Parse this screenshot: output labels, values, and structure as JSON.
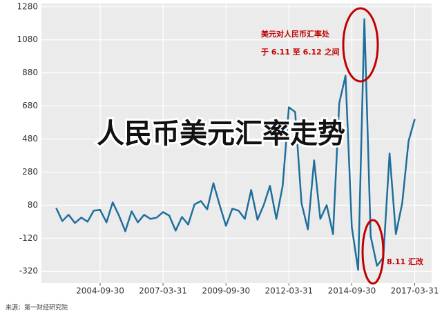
{
  "chart_data": {
    "type": "line",
    "title": "人民币美元汇率走势",
    "source": "来源：第一财经研究院",
    "annotations": [
      "美元对人民币汇率处",
      "于 6.11 至 6.12 之间",
      "8.11 汇改"
    ],
    "x": [
      "2002-12-31",
      "2003-03-31",
      "2003-06-30",
      "2003-09-30",
      "2003-12-31",
      "2004-03-31",
      "2004-06-30",
      "2004-09-30",
      "2004-12-31",
      "2005-03-31",
      "2005-06-30",
      "2005-09-30",
      "2005-12-31",
      "2006-03-31",
      "2006-06-30",
      "2006-09-30",
      "2006-12-31",
      "2007-03-31",
      "2007-06-30",
      "2007-09-30",
      "2007-12-31",
      "2008-03-31",
      "2008-06-30",
      "2008-09-30",
      "2008-12-31",
      "2009-03-31",
      "2009-06-30",
      "2009-09-30",
      "2009-12-31",
      "2010-03-31",
      "2010-06-30",
      "2010-09-30",
      "2010-12-31",
      "2011-03-31",
      "2011-06-30",
      "2011-09-30",
      "2011-12-31",
      "2012-03-31",
      "2012-06-30",
      "2012-09-30",
      "2012-12-31",
      "2013-03-31",
      "2013-06-30",
      "2013-09-30",
      "2013-12-31",
      "2014-03-31",
      "2014-06-30",
      "2014-09-30",
      "2014-12-31",
      "2015-03-31",
      "2015-06-30",
      "2015-09-30",
      "2015-12-31",
      "2016-03-31",
      "2016-06-30",
      "2016-09-30",
      "2016-12-31",
      "2017-03-31"
    ],
    "series": [
      {
        "name": "汇率",
        "color": "#1f6e9c",
        "values": [
          63,
          -16,
          22,
          -28,
          5,
          -20,
          47,
          51,
          -24,
          97,
          17,
          -78,
          43,
          -24,
          22,
          -3,
          5,
          38,
          17,
          -74,
          9,
          -37,
          84,
          105,
          55,
          213,
          80,
          -45,
          59,
          47,
          -3,
          172,
          -8,
          80,
          197,
          -3,
          197,
          672,
          643,
          92,
          -66,
          351,
          -3,
          80,
          -95,
          697,
          863,
          -53,
          -312,
          1205,
          -107,
          -287,
          -237,
          393,
          -95,
          92,
          468,
          601
        ]
      }
    ],
    "xlim": [
      "2002-06-01",
      "2017-12-01"
    ],
    "xticks": [
      "2004-09-30",
      "2007-03-31",
      "2009-09-30",
      "2012-03-31",
      "2014-09-30",
      "2017-03-31"
    ],
    "ylim": [
      -390,
      1300
    ],
    "yticks": [
      -320,
      -120,
      80,
      280,
      480,
      680,
      880,
      1080,
      1280
    ],
    "grid": true
  }
}
